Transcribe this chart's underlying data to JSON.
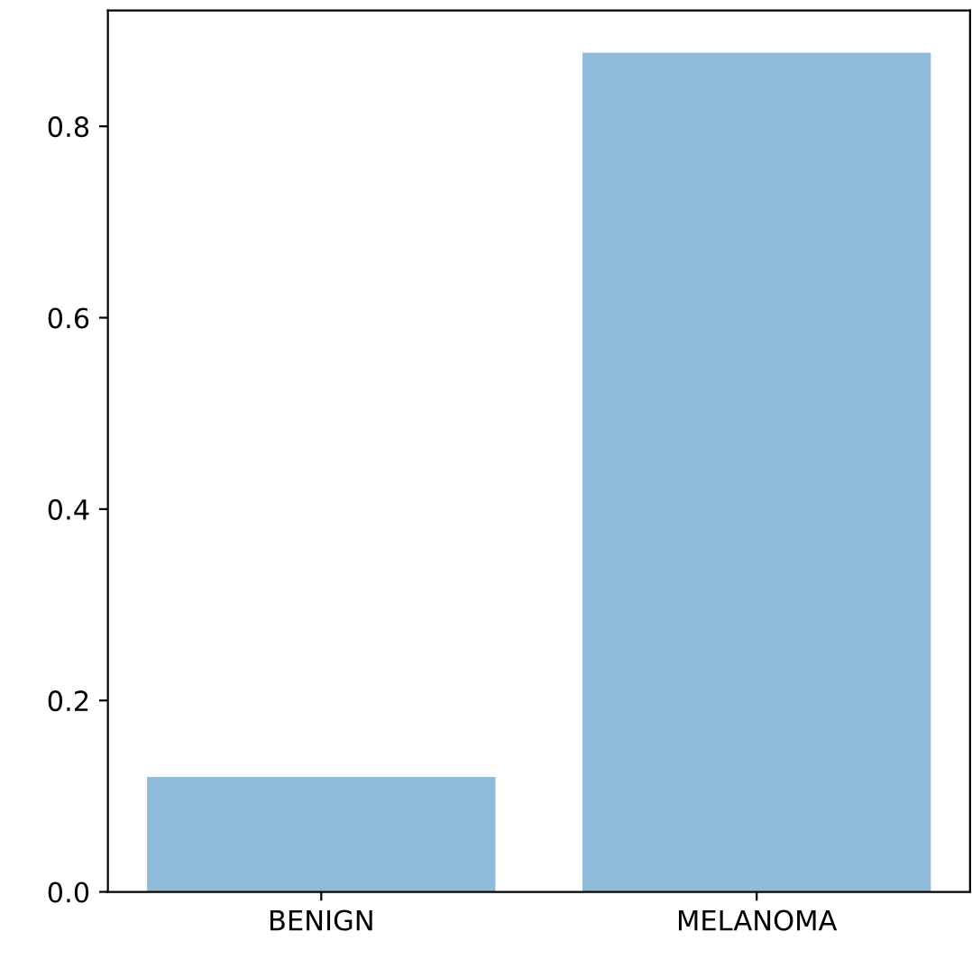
{
  "chart_data": {
    "type": "bar",
    "categories": [
      "BENIGN",
      "MELANOMA"
    ],
    "values": [
      0.12,
      0.877
    ],
    "color": "#8fbbd9",
    "ylim": [
      0,
      0.921
    ],
    "yticks": [
      {
        "value": 0,
        "label": "0.0"
      },
      0.2,
      0.4,
      0.6,
      0.8
    ],
    "grid": false
  }
}
